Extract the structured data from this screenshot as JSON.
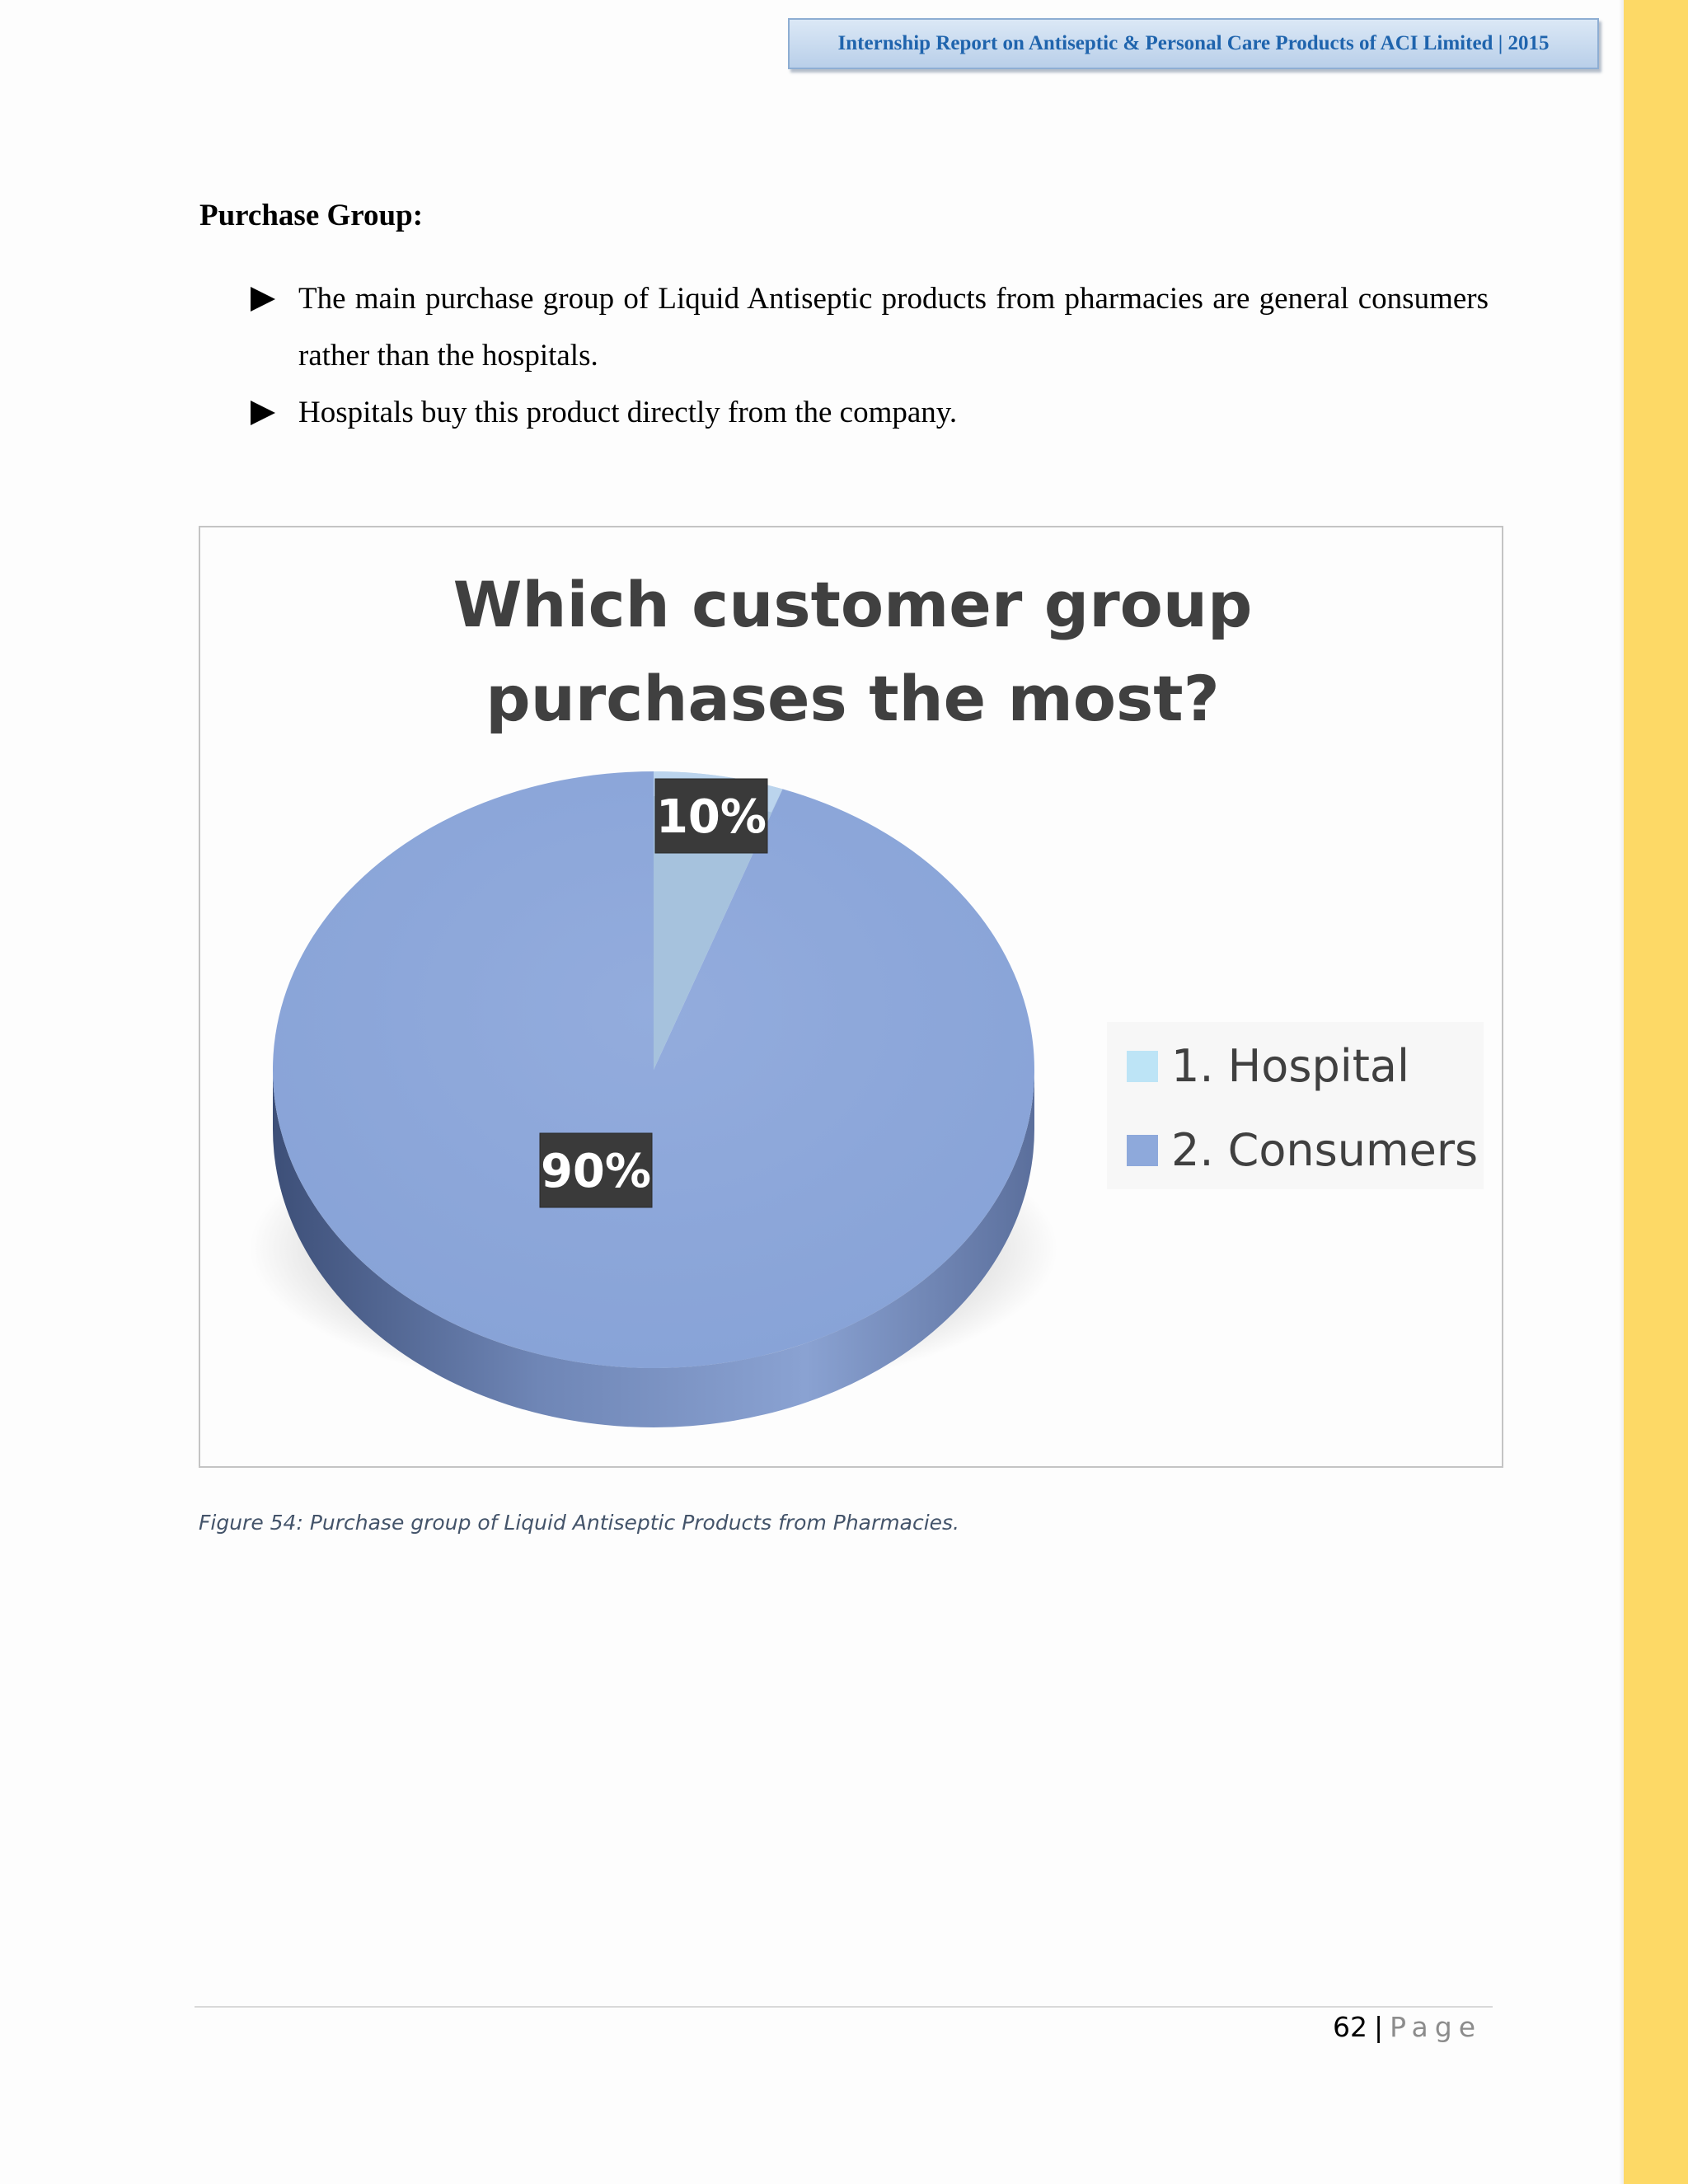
{
  "header": {
    "title": "Internship Report on Antiseptic & Personal Care Products of ACI Limited | 2015"
  },
  "section": {
    "title": "Purchase Group:",
    "bullets": [
      "The main purchase group of Liquid Antiseptic products from pharmacies are general consumers rather than the hospitals.",
      "Hospitals buy this product directly from the company."
    ]
  },
  "chart_data": {
    "type": "pie",
    "title": "Which customer group purchases the most?",
    "title_lines": [
      "Which customer group",
      "purchases the most?"
    ],
    "categories": [
      "1. Hospital",
      "2. Consumers"
    ],
    "values": [
      10,
      90
    ],
    "data_labels": [
      "10%",
      "90%"
    ],
    "colors": [
      "#a6c2dd",
      "#8ea9db"
    ],
    "legend_colors": [
      "#bde4f6",
      "#8ea9db"
    ],
    "legend_position": "right",
    "style": "3d"
  },
  "caption": "Figure 54:  Purchase group of Liquid Antiseptic Products from Pharmacies.",
  "footer": {
    "page_number": "62",
    "separator": "|",
    "page_word": "Page"
  }
}
